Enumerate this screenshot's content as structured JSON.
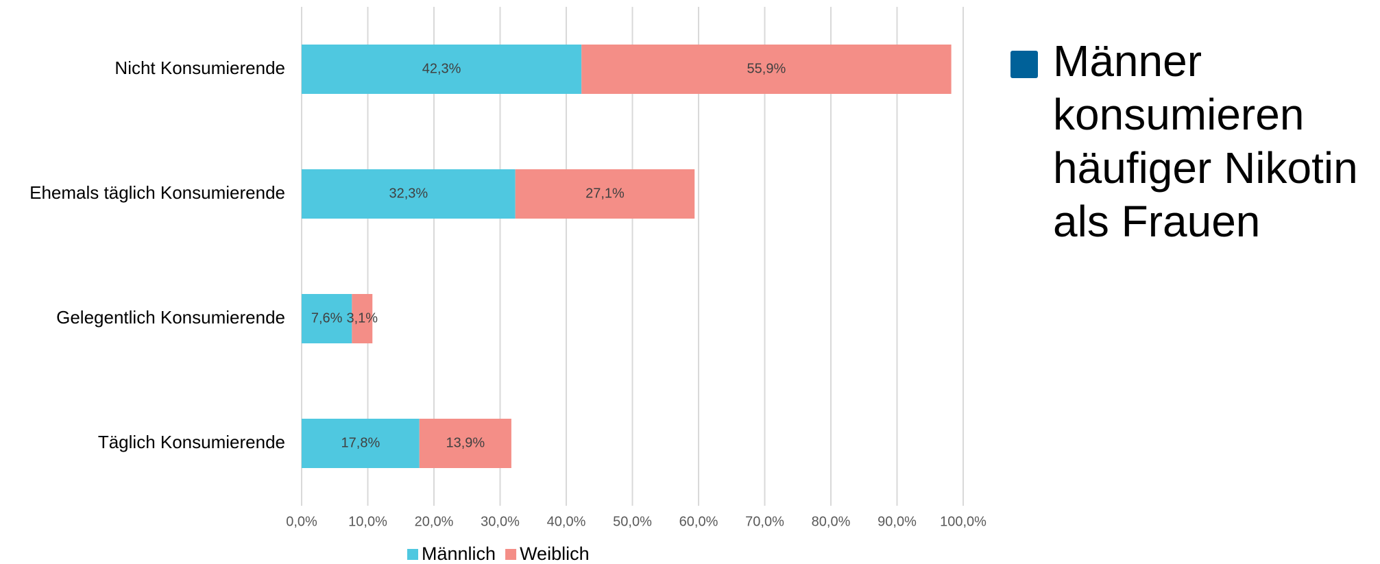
{
  "chart_data": {
    "type": "stacked-bar-horizontal",
    "categories": [
      "Nicht Konsumierende",
      "Ehemals täglich Konsumierende",
      "Gelegentlich Konsumierende",
      "Täglich Konsumierende"
    ],
    "series": [
      {
        "name": "Männlich",
        "color": "#4fc8e0",
        "values": [
          42.3,
          32.3,
          7.6,
          17.8
        ],
        "value_labels": [
          "42,3%",
          "32,3%",
          "7,6%",
          "17,8%"
        ]
      },
      {
        "name": "Weiblich",
        "color": "#f48e87",
        "values": [
          55.9,
          27.1,
          3.1,
          13.9
        ],
        "value_labels": [
          "55,9%",
          "27,1%",
          "3,1%",
          "13,9%"
        ]
      }
    ],
    "xlim": [
      0,
      100
    ],
    "xticks": [
      {
        "value": 0,
        "label": "0,0%"
      },
      {
        "value": 10,
        "label": "10,0%"
      },
      {
        "value": 20,
        "label": "20,0%"
      },
      {
        "value": 30,
        "label": "30,0%"
      },
      {
        "value": 40,
        "label": "40,0%"
      },
      {
        "value": 50,
        "label": "50,0%"
      },
      {
        "value": 60,
        "label": "60,0%"
      },
      {
        "value": 70,
        "label": "70,0%"
      },
      {
        "value": 80,
        "label": "80,0%"
      },
      {
        "value": 90,
        "label": "90,0%"
      },
      {
        "value": 100,
        "label": "100,0%"
      }
    ],
    "grid": true,
    "legend": "bottom",
    "annotation": [
      "Männer",
      "konsumieren",
      "häufiger Nikotin",
      "als Frauen"
    ],
    "annotation_color": "#006199"
  }
}
